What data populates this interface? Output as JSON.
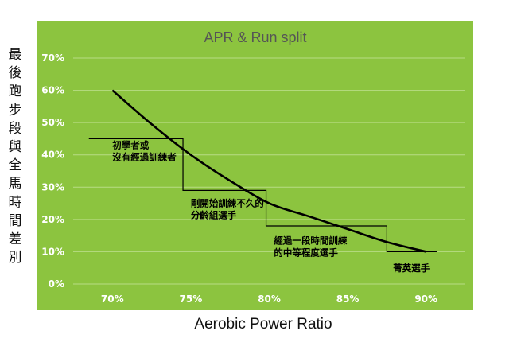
{
  "chart_data": {
    "type": "line",
    "title": "APR & Run split",
    "xlabel": "Aerobic Power Ratio",
    "ylabel": "最後跑步段與全馬時間差別",
    "x_ticks": [
      "70%",
      "75%",
      "80%",
      "85%",
      "90%"
    ],
    "y_ticks": [
      "0%",
      "10%",
      "20%",
      "30%",
      "40%",
      "50%",
      "60%",
      "70%"
    ],
    "xlim": [
      0.675,
      0.925
    ],
    "ylim": [
      0,
      0.7
    ],
    "grid": "horizontal",
    "legend": "none",
    "colors": {
      "background": "#8cc43f",
      "grid": "#b8dc85",
      "tick_text": "#ffffff",
      "curve": "#000000",
      "step": "#000000",
      "title_text": "#555555"
    },
    "series": [
      {
        "style": "curve",
        "x": [
          0.7,
          0.725,
          0.75,
          0.775,
          0.8,
          0.825,
          0.85,
          0.875,
          0.9
        ],
        "y": [
          0.6,
          0.495,
          0.4,
          0.32,
          0.25,
          0.21,
          0.17,
          0.13,
          0.1
        ]
      },
      {
        "style": "step",
        "x": [
          0.685,
          0.745,
          0.745,
          0.798,
          0.798,
          0.875,
          0.875,
          0.907
        ],
        "y": [
          0.45,
          0.45,
          0.29,
          0.29,
          0.18,
          0.18,
          0.1,
          0.1
        ]
      }
    ],
    "annotations": [
      {
        "lines": [
          "初學者或",
          "沒有經過訓練者"
        ],
        "x": 0.7,
        "y": 0.42
      },
      {
        "lines": [
          "剛開始訓練不久的",
          "分齡組選手"
        ],
        "x": 0.75,
        "y": 0.24
      },
      {
        "lines": [
          "經過一段時間訓練",
          "的中等程度選手"
        ],
        "x": 0.803,
        "y": 0.125
      },
      {
        "lines": [
          "菁英選手"
        ],
        "x": 0.879,
        "y": 0.04
      }
    ]
  }
}
